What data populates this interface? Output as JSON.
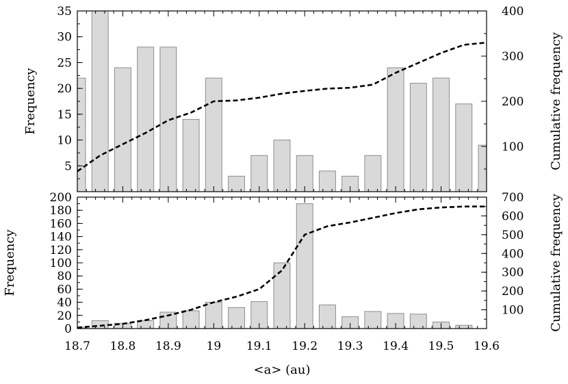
{
  "chart_data": [
    {
      "type": "bar",
      "panel": "top",
      "ylabel": "Frequency",
      "y2label": "Cumulative frequency",
      "xlim": [
        18.7,
        19.6
      ],
      "ylim": [
        0,
        35
      ],
      "y2lim": [
        0,
        400
      ],
      "yticks": [
        5,
        10,
        15,
        20,
        25,
        30,
        35
      ],
      "y2ticks": [
        100,
        200,
        300,
        400
      ],
      "bin_width": 0.05,
      "bins": [
        {
          "center": 18.7,
          "value": 22
        },
        {
          "center": 18.75,
          "value": 35
        },
        {
          "center": 18.8,
          "value": 24
        },
        {
          "center": 18.85,
          "value": 28
        },
        {
          "center": 18.9,
          "value": 28
        },
        {
          "center": 18.95,
          "value": 14
        },
        {
          "center": 19.0,
          "value": 22
        },
        {
          "center": 19.05,
          "value": 3
        },
        {
          "center": 19.1,
          "value": 7
        },
        {
          "center": 19.15,
          "value": 10
        },
        {
          "center": 19.2,
          "value": 7
        },
        {
          "center": 19.25,
          "value": 4
        },
        {
          "center": 19.3,
          "value": 3
        },
        {
          "center": 19.35,
          "value": 7
        },
        {
          "center": 19.4,
          "value": 24
        },
        {
          "center": 19.45,
          "value": 21
        },
        {
          "center": 19.5,
          "value": 22
        },
        {
          "center": 19.55,
          "value": 17
        },
        {
          "center": 19.6,
          "value": 9
        }
      ],
      "cumulative": {
        "x": [
          18.7,
          18.75,
          18.8,
          18.85,
          18.9,
          18.95,
          19.0,
          19.05,
          19.1,
          19.15,
          19.2,
          19.25,
          19.3,
          19.35,
          19.4,
          19.45,
          19.5,
          19.55,
          19.6
        ],
        "y": [
          45,
          80,
          105,
          130,
          158,
          175,
          200,
          202,
          208,
          217,
          223,
          228,
          230,
          237,
          263,
          285,
          307,
          325,
          330
        ]
      }
    },
    {
      "type": "bar",
      "panel": "bottom",
      "xlabel": "<a> (au)",
      "ylabel": "Frequency",
      "y2label": "Cumulative frequency",
      "xlim": [
        18.7,
        19.6
      ],
      "ylim": [
        0,
        200
      ],
      "y2lim": [
        0,
        700
      ],
      "xticks": [
        "18.7",
        "18.8",
        "18.9",
        "19",
        "19.1",
        "19.2",
        "19.3",
        "19.4",
        "19.5",
        "19.6"
      ],
      "yticks": [
        0,
        20,
        40,
        60,
        80,
        100,
        120,
        140,
        160,
        180,
        200
      ],
      "y2ticks": [
        100,
        200,
        300,
        400,
        500,
        600,
        700
      ],
      "bin_width": 0.05,
      "bins": [
        {
          "center": 18.7,
          "value": 2
        },
        {
          "center": 18.75,
          "value": 12
        },
        {
          "center": 18.8,
          "value": 8
        },
        {
          "center": 18.85,
          "value": 12
        },
        {
          "center": 18.9,
          "value": 25
        },
        {
          "center": 18.95,
          "value": 27
        },
        {
          "center": 19.0,
          "value": 40
        },
        {
          "center": 19.05,
          "value": 32
        },
        {
          "center": 19.1,
          "value": 41
        },
        {
          "center": 19.15,
          "value": 100
        },
        {
          "center": 19.2,
          "value": 190
        },
        {
          "center": 19.25,
          "value": 36
        },
        {
          "center": 19.3,
          "value": 18
        },
        {
          "center": 19.35,
          "value": 26
        },
        {
          "center": 19.4,
          "value": 23
        },
        {
          "center": 19.45,
          "value": 22
        },
        {
          "center": 19.5,
          "value": 10
        },
        {
          "center": 19.55,
          "value": 5
        }
      ],
      "cumulative": {
        "x": [
          18.7,
          18.75,
          18.8,
          18.85,
          18.9,
          18.95,
          19.0,
          19.05,
          19.1,
          19.15,
          19.2,
          19.25,
          19.3,
          19.35,
          19.4,
          19.45,
          19.5,
          19.55,
          19.6
        ],
        "y": [
          5,
          15,
          25,
          45,
          70,
          100,
          140,
          170,
          210,
          310,
          500,
          545,
          565,
          590,
          615,
          635,
          645,
          650,
          650
        ]
      }
    }
  ]
}
